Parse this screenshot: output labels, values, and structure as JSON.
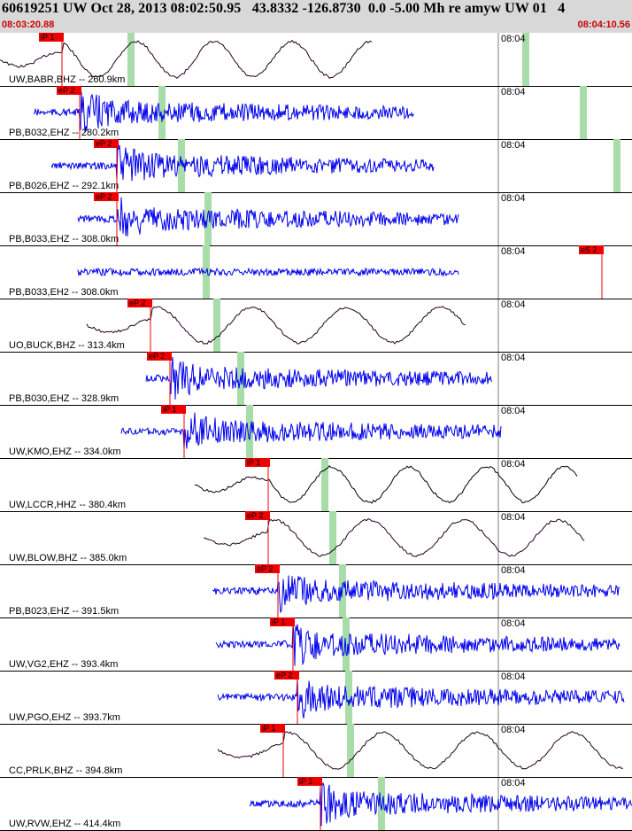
{
  "header": {
    "title": "60619251 UW Oct 28, 2013 08:02:50.95   43.8332 -126.8730  0.0 -5.00 Mh re amyw UW 01   4",
    "start_time": "08:03:20.88",
    "end_time": "08:04:10.56"
  },
  "tick_label": "08:04",
  "colors": {
    "pick_red": "#ee0000",
    "green_window": "#a8dca8",
    "wave_blue": "#0000ee",
    "wave_dark": "#220022"
  },
  "traces": [
    {
      "label": "UW,BABR,BHZ -- 260.9km",
      "pick": "iP 1",
      "color": "#220022",
      "type": "long"
    },
    {
      "label": "PB,B032,EHZ -- 280.2km",
      "pick": "eP 2",
      "color": "#0000ee",
      "type": "short"
    },
    {
      "label": "PB,B026,EHZ -- 292.1km",
      "pick": "eP 2",
      "color": "#0000ee",
      "type": "short"
    },
    {
      "label": "PB,B033,EHZ -- 308.0km",
      "pick": "eP 2",
      "color": "#0000ee",
      "type": "short"
    },
    {
      "label": "PB,B033,EH2 -- 308.0km",
      "pick": "eS 2",
      "color": "#0000ee",
      "type": "short"
    },
    {
      "label": "UO,BUCK,BHZ -- 313.4km",
      "pick": "eP 2",
      "color": "#220022",
      "type": "long"
    },
    {
      "label": "PB,B030,EHZ -- 328.9km",
      "pick": "eP 2",
      "color": "#0000ee",
      "type": "short"
    },
    {
      "label": "UW,KMO,EHZ -- 334.0km",
      "pick": "iP 1",
      "color": "#0000ee",
      "type": "short"
    },
    {
      "label": "UW,LCCR,HHZ -- 380.4km",
      "pick": "iP 1",
      "color": "#000000",
      "type": "long"
    },
    {
      "label": "UW,BLOW,BHZ -- 385.0km",
      "pick": "eP 2",
      "color": "#220022",
      "type": "long"
    },
    {
      "label": "PB,B023,EHZ -- 391.5km",
      "pick": "eP 2",
      "color": "#0000ee",
      "type": "short"
    },
    {
      "label": "UW,VG2,EHZ -- 393.4km",
      "pick": "iP 1",
      "color": "#0000ee",
      "type": "short"
    },
    {
      "label": "UW,PGO,EHZ -- 393.7km",
      "pick": "eP 2",
      "color": "#0000ee",
      "type": "short"
    },
    {
      "label": "CC,PRLK,BHZ -- 394.8km",
      "pick": "iP 1",
      "color": "#220022",
      "type": "long"
    },
    {
      "label": "UW,RVW,EHZ -- 414.4km",
      "pick": "iP 1",
      "color": "#0000ee",
      "type": "short"
    }
  ]
}
